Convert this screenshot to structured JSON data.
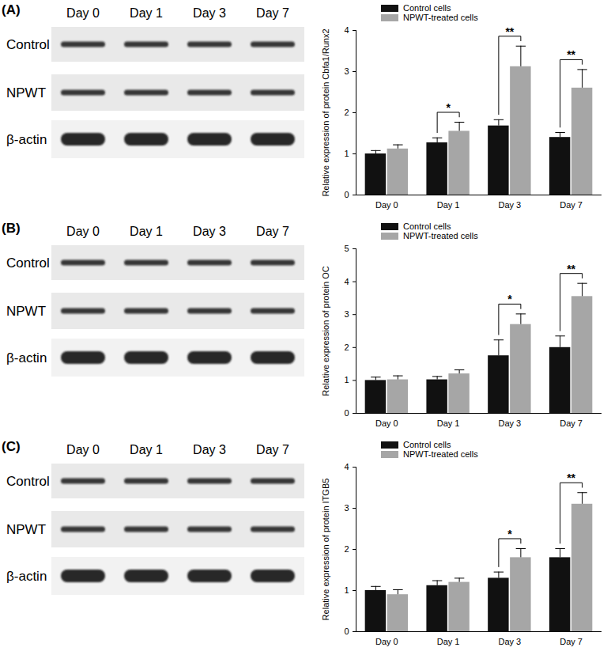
{
  "chart_data": [
    {
      "type": "bar",
      "panel": "(A)",
      "blot": {
        "lanes": [
          "Day 0",
          "Day 1",
          "Day 3",
          "Day 7"
        ],
        "rows": [
          "Control",
          "NPWT",
          "β-actin"
        ]
      },
      "ylabel": "Relative expression of protein Cbfa1/Runx2",
      "categories": [
        "Day 0",
        "Day 1",
        "Day 3",
        "Day 7"
      ],
      "series": [
        {
          "name": "Control cells",
          "color": "#111111",
          "values": [
            1.0,
            1.27,
            1.68,
            1.4
          ],
          "errors": [
            0.08,
            0.12,
            0.15,
            0.12
          ]
        },
        {
          "name": "NPWT-treated cells",
          "color": "#a6a6a6",
          "values": [
            1.12,
            1.55,
            3.12,
            2.6
          ],
          "errors": [
            0.1,
            0.22,
            0.5,
            0.45
          ]
        }
      ],
      "ylim": [
        0,
        4
      ],
      "yticks": [
        0,
        1,
        2,
        3,
        4
      ],
      "legend": "top-left",
      "annotations": [
        {
          "category": "Day 1",
          "text": "*"
        },
        {
          "category": "Day 3",
          "text": "**"
        },
        {
          "category": "Day 7",
          "text": "**"
        }
      ]
    },
    {
      "type": "bar",
      "panel": "(B)",
      "blot": {
        "lanes": [
          "Day 0",
          "Day 1",
          "Day 3",
          "Day 7"
        ],
        "rows": [
          "Control",
          "NPWT",
          "β-actin"
        ]
      },
      "ylabel": "Relative expression of protein OC",
      "categories": [
        "Day 0",
        "Day 1",
        "Day 3",
        "Day 7"
      ],
      "series": [
        {
          "name": "Control cells",
          "color": "#111111",
          "values": [
            1.0,
            1.02,
            1.75,
            2.0
          ],
          "errors": [
            0.1,
            0.1,
            0.48,
            0.35
          ]
        },
        {
          "name": "NPWT-treated cells",
          "color": "#a6a6a6",
          "values": [
            1.02,
            1.2,
            2.7,
            3.55
          ],
          "errors": [
            0.12,
            0.12,
            0.32,
            0.4
          ]
        }
      ],
      "ylim": [
        0,
        5
      ],
      "yticks": [
        0,
        1,
        2,
        3,
        4,
        5
      ],
      "legend": "top-left",
      "annotations": [
        {
          "category": "Day 3",
          "text": "*"
        },
        {
          "category": "Day 7",
          "text": "**"
        }
      ]
    },
    {
      "type": "bar",
      "panel": "(C)",
      "blot": {
        "lanes": [
          "Day 0",
          "Day 1",
          "Day 3",
          "Day 7"
        ],
        "rows": [
          "Control",
          "NPWT",
          "β-actin"
        ]
      },
      "ylabel": "Relative expression of protein ITGB5",
      "categories": [
        "Day 0",
        "Day 1",
        "Day 3",
        "Day 7"
      ],
      "series": [
        {
          "name": "Control cells",
          "color": "#111111",
          "values": [
            1.0,
            1.12,
            1.3,
            1.8
          ],
          "errors": [
            0.1,
            0.12,
            0.15,
            0.22
          ]
        },
        {
          "name": "NPWT-treated cells",
          "color": "#a6a6a6",
          "values": [
            0.9,
            1.2,
            1.8,
            3.1
          ],
          "errors": [
            0.12,
            0.1,
            0.22,
            0.28
          ]
        }
      ],
      "ylim": [
        0,
        4
      ],
      "yticks": [
        0,
        1,
        2,
        3,
        4
      ],
      "legend": "top-left",
      "annotations": [
        {
          "category": "Day 3",
          "text": "*"
        },
        {
          "category": "Day 7",
          "text": "**"
        }
      ]
    }
  ]
}
